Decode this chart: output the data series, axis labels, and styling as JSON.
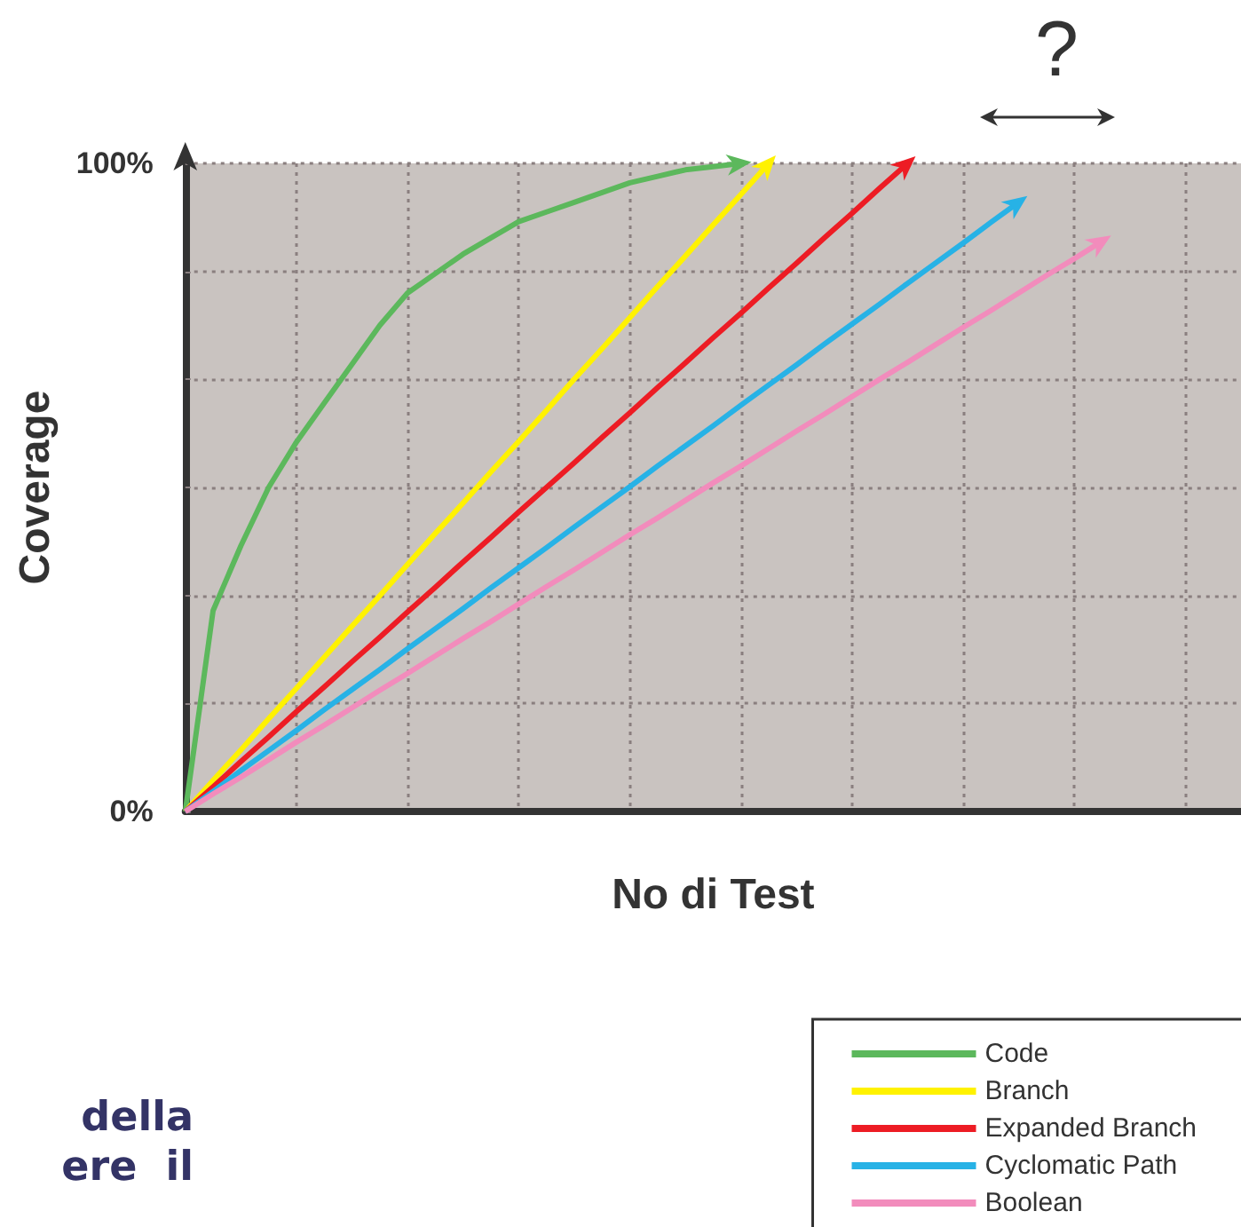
{
  "chart_data": {
    "type": "line",
    "xlabel": "No di Test",
    "ylabel": "Coverage",
    "categories": [
      null,
      null,
      null,
      null,
      null,
      null,
      null,
      null,
      null,
      null,
      null,
      null,
      null,
      null,
      null,
      null,
      null,
      null,
      null,
      null,
      null,
      null,
      null,
      null,
      null,
      null,
      null,
      null,
      null,
      null,
      null,
      null,
      null,
      null,
      null,
      null,
      null,
      null,
      null
    ],
    "series": [
      {
        "name": "Code",
        "color": "#5cb85c",
        "values": [
          0,
          31,
          41,
          50,
          57,
          63,
          69,
          75,
          80,
          83,
          86,
          88.5,
          91,
          92.5,
          94,
          95.5,
          97,
          98,
          99,
          99.5,
          100,
          null,
          null,
          null,
          null,
          null,
          null,
          null,
          null,
          null,
          null,
          null,
          null,
          null,
          null,
          null,
          null,
          null,
          null
        ]
      },
      {
        "name": "Branch",
        "color": "#fff200",
        "values": [
          0,
          4.8,
          9.5,
          14.3,
          19,
          23.8,
          28.6,
          33.3,
          38.1,
          42.9,
          47.6,
          52.4,
          57.1,
          61.9,
          66.7,
          71.4,
          76.2,
          81,
          85.7,
          90.5,
          95.2,
          100,
          null,
          null,
          null,
          null,
          null,
          null,
          null,
          null,
          null,
          null,
          null,
          null,
          null,
          null,
          null,
          null,
          null
        ]
      },
      {
        "name": "Expanded Branch",
        "color": "#ed1c24",
        "values": [
          0,
          3.8,
          7.7,
          11.5,
          15.4,
          19.2,
          23.1,
          26.9,
          30.8,
          34.6,
          38.5,
          42.3,
          46.2,
          50,
          53.8,
          57.7,
          61.5,
          65.4,
          69.2,
          73.1,
          76.9,
          80.8,
          84.6,
          88.5,
          92.3,
          96.2,
          100,
          null,
          null,
          null,
          null,
          null,
          null,
          null,
          null,
          null,
          null,
          null,
          null
        ]
      },
      {
        "name": "Cyclomatic Path",
        "color": "#27b2e6",
        "values": [
          0,
          3.1,
          6.3,
          9.4,
          12.5,
          15.7,
          18.8,
          21.9,
          25.1,
          28.2,
          31.3,
          34.5,
          37.6,
          40.7,
          43.9,
          47,
          50.1,
          53.3,
          56.4,
          59.5,
          62.7,
          65.8,
          68.9,
          72.1,
          75.2,
          78.3,
          81.5,
          84.6,
          87.7,
          90.9,
          94,
          null,
          null,
          null,
          null,
          null,
          null,
          null,
          null
        ]
      },
      {
        "name": "Boolean",
        "color": "#f28cbc",
        "values": [
          0,
          2.7,
          5.3,
          8,
          10.7,
          13.3,
          16,
          18.7,
          21.3,
          24,
          26.7,
          29.3,
          32,
          34.7,
          37.3,
          40,
          42.7,
          45.3,
          48,
          50.7,
          53.3,
          56,
          58.7,
          61.3,
          64,
          66.7,
          69.3,
          72,
          74.7,
          77.3,
          80,
          82.7,
          85.3,
          88,
          null,
          null,
          null,
          null,
          null
        ]
      }
    ],
    "ylim": [
      0,
      100
    ],
    "yticks": [
      {
        "value": 0,
        "label": "0%"
      },
      {
        "value": 16.67,
        "label": null
      },
      {
        "value": 33.33,
        "label": null
      },
      {
        "value": 50,
        "label": null
      },
      {
        "value": 66.67,
        "label": null
      },
      {
        "value": 83.33,
        "label": null
      },
      {
        "value": 100,
        "label": "100%"
      }
    ],
    "grid": true,
    "legend": "bottom right",
    "tick_labels": "y",
    "annotations": [
      "?",
      "della",
      "ere  il"
    ]
  }
}
